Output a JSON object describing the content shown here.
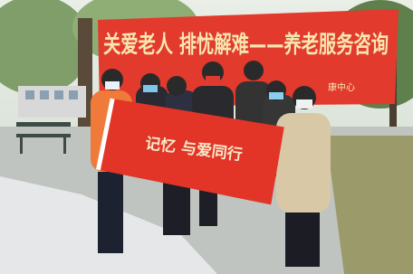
{
  "banners": [
    {
      "text": "关爱老人 排忧解难——养老服务咨询"
    },
    {
      "text": "康中心"
    },
    {
      "text": "记忆 与爱同行"
    }
  ]
}
